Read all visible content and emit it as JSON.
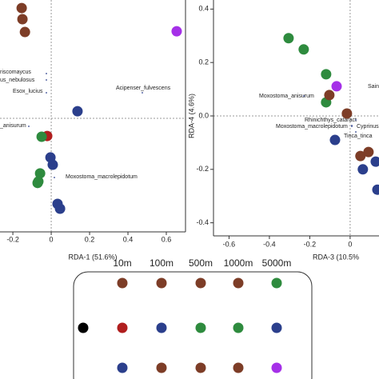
{
  "chart_data": [
    {
      "type": "scatter",
      "xlabel": "RDA-1 (51.6%)",
      "xlim": [
        -0.267,
        0.7
      ],
      "ylim": [
        -0.592,
        0.617
      ],
      "xticks": [
        -0.2,
        0,
        0.2,
        0.4,
        0.6
      ],
      "series": [
        {
          "color": "#7d3d27",
          "x": [
            -0.154,
            -0.15,
            -0.137
          ],
          "values": [
            0.575,
            0.517,
            0.45
          ]
        },
        {
          "color": "#a530e8",
          "x": [
            0.654
          ],
          "values": [
            0.454
          ]
        },
        {
          "color": "#b01e1e",
          "x": [
            -0.021
          ],
          "values": [
            -0.092
          ]
        },
        {
          "color": "#2e8b3e",
          "x": [
            -0.05,
            -0.058,
            -0.067,
            -0.071
          ],
          "values": [
            -0.096,
            -0.287,
            -0.329,
            -0.337
          ]
        },
        {
          "color": "#2b3f8c",
          "x": [
            0.137,
            -0.004,
            0.008,
            0.033,
            0.046
          ],
          "values": [
            0.037,
            -0.204,
            -0.242,
            -0.446,
            -0.471
          ]
        }
      ],
      "annotations": [
        {
          "text": "riscomaycus",
          "color": "#2b3f8c"
        },
        {
          "text": "us_nebulosus",
          "color": "#2b3f8c"
        },
        {
          "text": "Esox_lucius",
          "color": "#2b3f8c"
        },
        {
          "text": "Acipenser_fulvescens",
          "color": "#2b3f8c"
        },
        {
          "text": "_anisurum",
          "color": "#2b3f8c"
        },
        {
          "text": "Moxostoma_macrolepidotum",
          "color": "#2b3f8c"
        }
      ]
    },
    {
      "type": "scatter",
      "xlabel": "RDA-3 (10.5%",
      "ylabel": "RDA-4 (4.6%)",
      "xlim": [
        -0.677,
        0.143
      ],
      "ylim": [
        -0.449,
        0.434
      ],
      "xticks": [
        -0.6,
        -0.4,
        -0.2,
        0
      ],
      "yticks": [
        -0.4,
        -0.2,
        {
          "value": 0,
          "label": "0.0"
        },
        0.2,
        0.4
      ],
      "series": [
        {
          "color": "#2e8b3e",
          "x": [
            -0.305,
            -0.23,
            -0.119,
            -0.119
          ],
          "values": [
            0.291,
            0.249,
            0.156,
            0.051
          ]
        },
        {
          "color": "#7d3d27",
          "x": [
            -0.103,
            -0.016,
            0.051,
            0.091
          ],
          "values": [
            0.078,
            0.009,
            -0.15,
            -0.135
          ]
        },
        {
          "color": "#a530e8",
          "x": [
            -0.067
          ],
          "values": [
            0.111
          ]
        },
        {
          "color": "#2b3f8c",
          "x": [
            -0.075,
            0.063,
            0.127,
            0.135
          ],
          "values": [
            -0.09,
            -0.2,
            -0.171,
            -0.276
          ]
        }
      ],
      "annotations": [
        {
          "text": "Sain",
          "color": "#d42020"
        },
        {
          "text": "Moxostoma_anisurum",
          "color": "#2b3f8c"
        },
        {
          "text": "Rhinichthys_cataract",
          "color": "#2b3f8c"
        },
        {
          "text": "Moxostoma_macrolepidotum",
          "color": "#2b3f8c"
        },
        {
          "text": "Cyprinus",
          "color": "#2b3f8c"
        },
        {
          "text": "Tinca_tinca",
          "color": "#2b3f8c"
        }
      ]
    }
  ],
  "legend_grid": {
    "columns": [
      null,
      "10m",
      "100m",
      "500m",
      "1000m",
      "5000m"
    ],
    "rows": [
      [
        null,
        "#7d3d27",
        "#7d3d27",
        "#7d3d27",
        "#7d3d27",
        "#2e8b3e"
      ],
      [
        "#000000",
        "#b01e1e",
        "#2b3f8c",
        "#2e8b3e",
        "#2e8b3e",
        "#2b3f8c"
      ],
      [
        null,
        "#2b3f8c",
        "#7d3d27",
        "#7d3d27",
        "#7d3d27",
        "#a530e8"
      ]
    ]
  }
}
